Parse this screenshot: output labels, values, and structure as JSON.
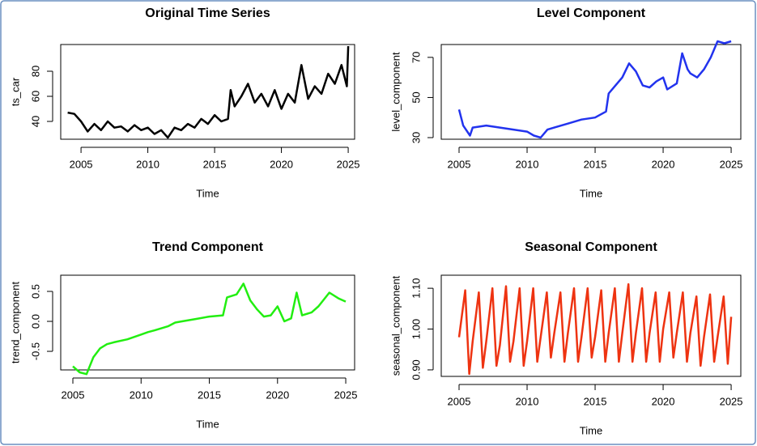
{
  "chart_data": [
    {
      "type": "line",
      "title": "Original Time Series",
      "xlabel": "Time",
      "ylabel": "ts_car",
      "xlim": [
        2003.48,
        2025.48
      ],
      "xticks": [
        2005,
        2010,
        2015,
        2020,
        2025
      ],
      "ylim": [
        25.8,
        101.3
      ],
      "yticks": [
        40,
        60,
        80
      ],
      "x": [
        2004,
        2004.5,
        2005,
        2005.5,
        2006,
        2006.5,
        2007,
        2007.5,
        2008,
        2008.5,
        2009,
        2009.5,
        2010,
        2010.5,
        2011,
        2011.5,
        2012,
        2012.5,
        2013,
        2013.5,
        2014,
        2014.5,
        2015,
        2015.5,
        2016,
        2016.2,
        2016.5,
        2017,
        2017.5,
        2018,
        2018.5,
        2019,
        2019.5,
        2020,
        2020.5,
        2021,
        2021.5,
        2022,
        2022.5,
        2023,
        2023.5,
        2024,
        2024.5,
        2024.9,
        2025
      ],
      "series": [
        {
          "name": "ts_car",
          "color": "#000000",
          "values": [
            47,
            46,
            40,
            32,
            38,
            33,
            40,
            35,
            36,
            32,
            37,
            33,
            35,
            30,
            33,
            27,
            35,
            33,
            38,
            35,
            42,
            38,
            45,
            40,
            42,
            65,
            52,
            60,
            70,
            55,
            62,
            52,
            65,
            50,
            62,
            55,
            85,
            58,
            68,
            62,
            78,
            70,
            85,
            68,
            100
          ]
        }
      ]
    },
    {
      "type": "line",
      "title": "Level Component",
      "xlabel": "Time",
      "ylabel": "level_component",
      "xlim": [
        2003.69,
        2025.71
      ],
      "xticks": [
        2005,
        2010,
        2015,
        2020,
        2025
      ],
      "ylim": [
        29.2,
        76.4
      ],
      "yticks": [
        30,
        50,
        70
      ],
      "x": [
        2005,
        2005.3,
        2005.8,
        2006,
        2007,
        2008,
        2009,
        2010,
        2010.5,
        2011,
        2011.5,
        2012,
        2013,
        2014,
        2015,
        2015.8,
        2016,
        2016.5,
        2017,
        2017.5,
        2018,
        2018.5,
        2019,
        2019.5,
        2020,
        2020.3,
        2021,
        2021.4,
        2021.8,
        2022,
        2022.5,
        2023,
        2023.5,
        2024,
        2024.5,
        2025
      ],
      "series": [
        {
          "name": "level_component",
          "color": "#2233ee",
          "values": [
            44,
            36,
            31,
            35,
            36,
            35,
            34,
            33,
            31,
            30,
            34,
            35,
            37,
            39,
            40,
            43,
            52,
            56,
            60,
            67,
            63,
            56,
            55,
            58,
            60,
            54,
            57,
            72,
            64,
            62,
            60,
            64,
            70,
            78,
            77,
            78
          ]
        }
      ]
    },
    {
      "type": "line",
      "title": "Trend Component",
      "xlabel": "Time",
      "ylabel": "trend_component",
      "xlim": [
        2004.11,
        2025.65
      ],
      "xticks": [
        2005,
        2010,
        2015,
        2020,
        2025
      ],
      "ylim": [
        -0.81,
        0.77
      ],
      "yticks": [
        -0.5,
        {
          "value": 0,
          "label": "0.0"
        },
        0.5
      ],
      "x": [
        2005,
        2005.5,
        2006,
        2006.5,
        2007,
        2007.5,
        2008,
        2009,
        2010,
        2010.5,
        2011,
        2012,
        2012.5,
        2013,
        2014,
        2015,
        2016,
        2016.3,
        2017,
        2017.5,
        2018,
        2018.5,
        2019,
        2019.5,
        2020,
        2020.5,
        2021,
        2021.4,
        2021.8,
        2022.5,
        2023,
        2023.8,
        2024.5,
        2025
      ],
      "series": [
        {
          "name": "trend_component",
          "color": "#22ee11",
          "values": [
            -0.75,
            -0.85,
            -0.88,
            -0.6,
            -0.45,
            -0.38,
            -0.35,
            -0.3,
            -0.22,
            -0.18,
            -0.15,
            -0.08,
            -0.02,
            0.0,
            0.04,
            0.08,
            0.1,
            0.4,
            0.45,
            0.63,
            0.35,
            0.2,
            0.08,
            0.1,
            0.25,
            0.0,
            0.05,
            0.48,
            0.1,
            0.15,
            0.25,
            0.48,
            0.38,
            0.33
          ]
        }
      ]
    },
    {
      "type": "line",
      "title": "Seasonal Component",
      "xlabel": "Time",
      "ylabel": "seasonal_component",
      "xlim": [
        2003.69,
        2025.71
      ],
      "xticks": [
        2005,
        2010,
        2015,
        2020,
        2025
      ],
      "ylim": [
        0.884,
        1.132
      ],
      "yticks": [
        {
          "value": 0.9,
          "label": "0.90"
        },
        {
          "value": 1.0,
          "label": "1.00"
        },
        {
          "value": 1.1,
          "label": "1.10"
        }
      ],
      "x": [
        2005,
        2005.45,
        2005.75,
        2006,
        2006.45,
        2006.75,
        2007,
        2007.45,
        2007.75,
        2008,
        2008.45,
        2008.75,
        2009,
        2009.45,
        2009.75,
        2010,
        2010.45,
        2010.75,
        2011,
        2011.45,
        2011.75,
        2012,
        2012.45,
        2012.75,
        2013,
        2013.45,
        2013.75,
        2014,
        2014.45,
        2014.75,
        2015,
        2015.45,
        2015.75,
        2016,
        2016.45,
        2016.75,
        2017,
        2017.45,
        2017.75,
        2018,
        2018.45,
        2018.75,
        2019,
        2019.45,
        2019.75,
        2020,
        2020.45,
        2020.75,
        2021,
        2021.45,
        2021.75,
        2022,
        2022.45,
        2022.75,
        2023,
        2023.45,
        2023.75,
        2024,
        2024.45,
        2024.75,
        2025
      ],
      "series": [
        {
          "name": "seasonal_component",
          "color": "#ee3311",
          "values": [
            0.98,
            1.095,
            0.89,
            0.97,
            1.09,
            0.905,
            0.97,
            1.1,
            0.91,
            0.96,
            1.105,
            0.92,
            0.97,
            1.1,
            0.91,
            0.97,
            1.1,
            0.92,
            0.98,
            1.09,
            0.93,
            0.99,
            1.09,
            0.92,
            0.99,
            1.1,
            0.92,
            0.98,
            1.1,
            0.93,
            0.98,
            1.095,
            0.92,
            0.99,
            1.1,
            0.92,
            0.99,
            1.11,
            0.92,
            0.99,
            1.1,
            0.92,
            0.99,
            1.09,
            0.92,
            1.0,
            1.09,
            0.93,
            0.99,
            1.09,
            0.92,
            0.99,
            1.08,
            0.91,
            0.98,
            1.085,
            0.92,
            0.98,
            1.08,
            0.915,
            1.03
          ]
        }
      ]
    }
  ]
}
